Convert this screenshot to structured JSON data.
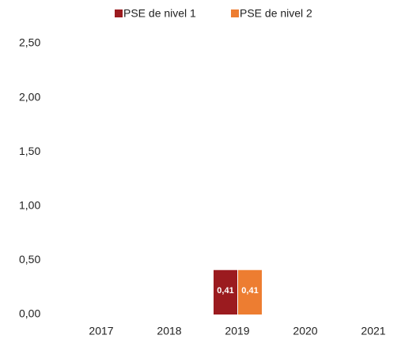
{
  "chart_data": {
    "type": "bar",
    "categories": [
      "2017",
      "2018",
      "2019",
      "2020",
      "2021"
    ],
    "series": [
      {
        "name": "PSE de nivel 1",
        "color": "#9b1b1f",
        "values": [
          null,
          null,
          0.41,
          null,
          null
        ],
        "value_labels": [
          null,
          null,
          "0,41",
          null,
          null
        ]
      },
      {
        "name": "PSE de nivel 2",
        "color": "#ed7d31",
        "values": [
          null,
          null,
          0.41,
          null,
          null
        ],
        "value_labels": [
          null,
          null,
          "0,41",
          null,
          null
        ]
      }
    ],
    "ylim": [
      0,
      2.5
    ],
    "yticks": [
      {
        "value": 0,
        "label": "0,00"
      },
      {
        "value": 0.5,
        "label": "0,50"
      },
      {
        "value": 1,
        "label": "1,00"
      },
      {
        "value": 1.5,
        "label": "1,50"
      },
      {
        "value": 2,
        "label": "2,00"
      },
      {
        "value": 2.5,
        "label": "2,50"
      }
    ],
    "grid": false,
    "legend": "top"
  }
}
